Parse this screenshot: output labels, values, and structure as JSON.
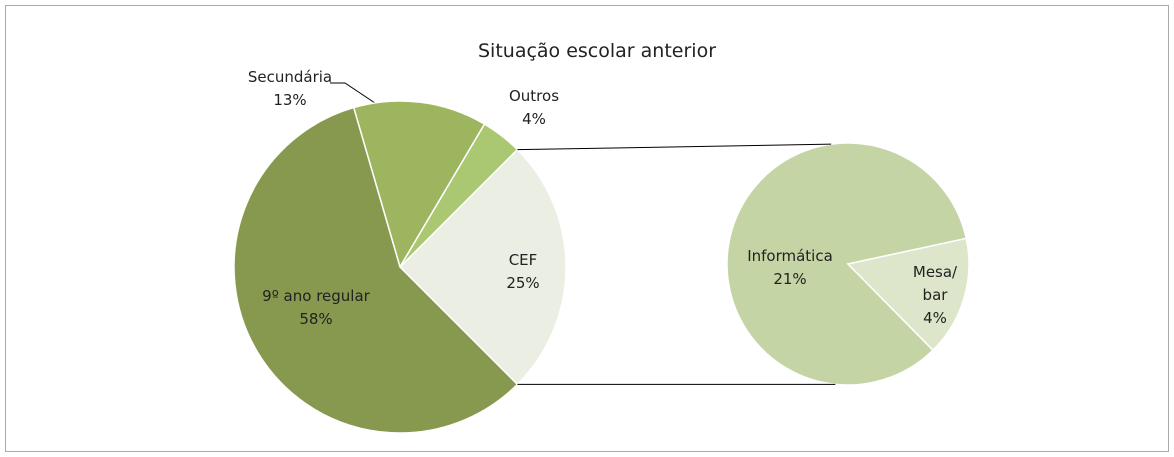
{
  "chart_data": [
    {
      "type": "pie",
      "title": "Situação escolar anterior",
      "categories": [
        "Secundária",
        "Outros",
        "CEF",
        "9º ano regular"
      ],
      "values": [
        13,
        4,
        25,
        58
      ],
      "value_labels": [
        "13%",
        "4%",
        "25%",
        "58%"
      ],
      "colors": [
        "#9db55e",
        "#aac771",
        "#ebeee2",
        "#87994f"
      ]
    },
    {
      "type": "pie",
      "categories": [
        "Informática",
        "Mesa/\nbar"
      ],
      "values": [
        21,
        4
      ],
      "value_labels": [
        "21%",
        "4%"
      ],
      "colors": [
        "#c4d4a4",
        "#dde5cb"
      ]
    }
  ]
}
